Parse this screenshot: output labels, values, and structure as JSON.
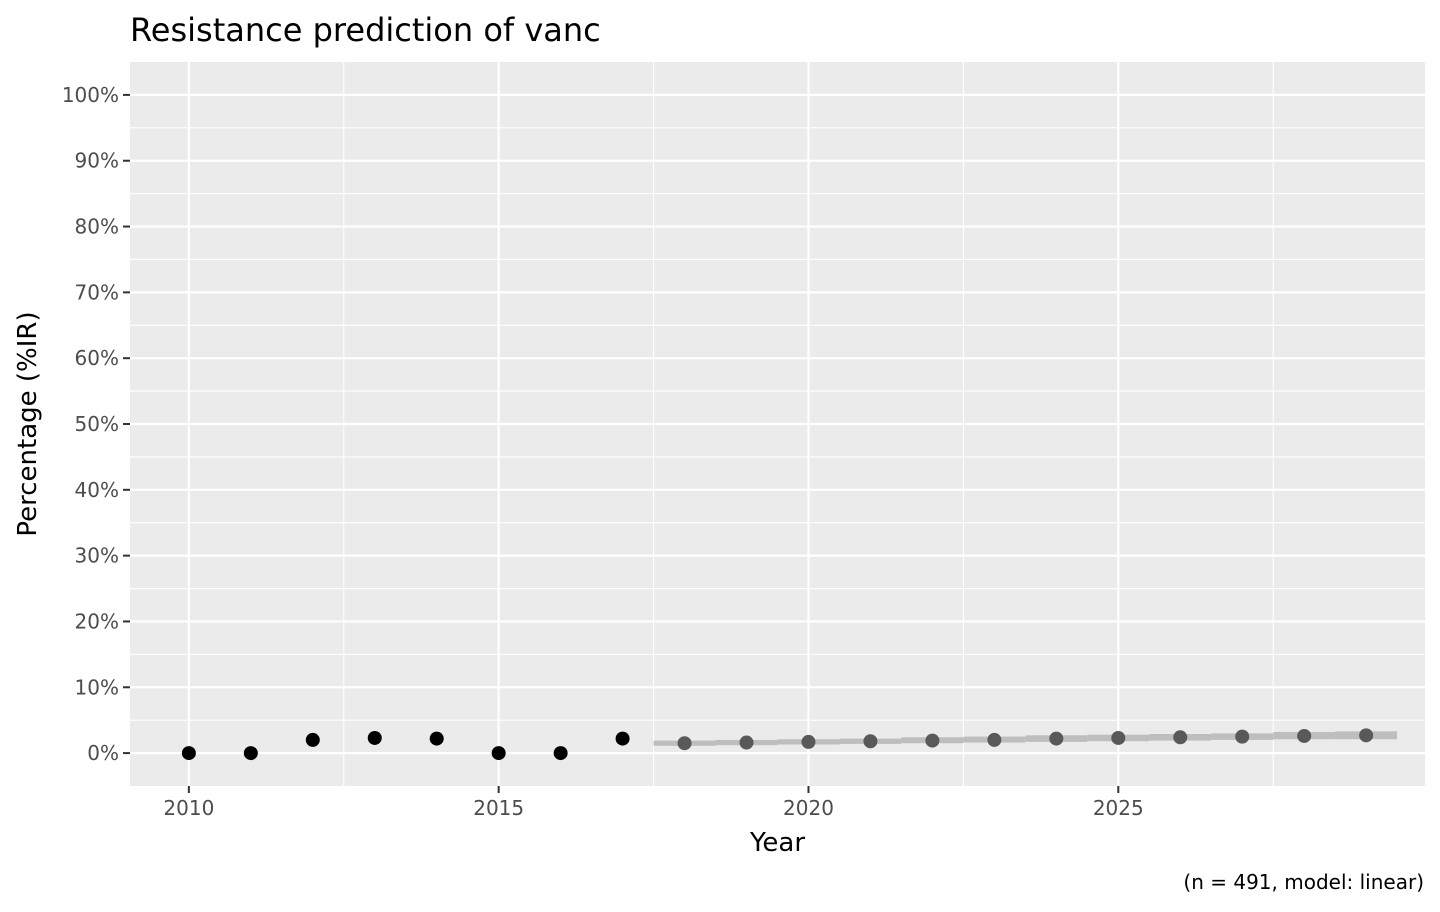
{
  "chart_data": {
    "type": "scatter",
    "title": "Resistance prediction of vanc",
    "xlabel": "Year",
    "ylabel": "Percentage (%IR)",
    "caption": "(n = 491, model: linear)",
    "xlim": [
      2009.05,
      2029.95
    ],
    "ylim": [
      -0.05,
      1.05
    ],
    "x_ticks": [
      2010,
      2015,
      2020,
      2025
    ],
    "x_tick_labels": [
      "2010",
      "2015",
      "2020",
      "2025"
    ],
    "y_ticks": [
      0,
      0.1,
      0.2,
      0.3,
      0.4,
      0.5,
      0.6,
      0.7,
      0.8,
      0.9,
      1.0
    ],
    "y_tick_labels": [
      "0%",
      "10%",
      "20%",
      "30%",
      "40%",
      "50%",
      "60%",
      "70%",
      "80%",
      "90%",
      "100%"
    ],
    "grid": true,
    "colors": {
      "panel": "#ebebeb",
      "grid": "#ffffff",
      "observed": "#000000",
      "predicted": "#595959",
      "interval": "#bebebe"
    },
    "series": [
      {
        "name": "",
        "kind": "observed",
        "x": [
          2010,
          2011,
          2012,
          2013,
          2014,
          2015,
          2016,
          2017
        ],
        "y": [
          0.0,
          0.0,
          0.02,
          0.023,
          0.022,
          0.0,
          0.0,
          0.022
        ]
      },
      {
        "name": "",
        "kind": "predicted",
        "x": [
          2018,
          2019,
          2020,
          2021,
          2022,
          2023,
          2024,
          2025,
          2026,
          2027,
          2028,
          2029
        ],
        "y": [
          0.015,
          0.016,
          0.017,
          0.018,
          0.019,
          0.02,
          0.022,
          0.023,
          0.024,
          0.025,
          0.026,
          0.027
        ],
        "lower": [
          0.011,
          0.012,
          0.013,
          0.014,
          0.015,
          0.016,
          0.017,
          0.018,
          0.019,
          0.02,
          0.021,
          0.021
        ],
        "upper": [
          0.019,
          0.02,
          0.021,
          0.022,
          0.024,
          0.025,
          0.027,
          0.028,
          0.029,
          0.03,
          0.032,
          0.033
        ]
      }
    ]
  }
}
